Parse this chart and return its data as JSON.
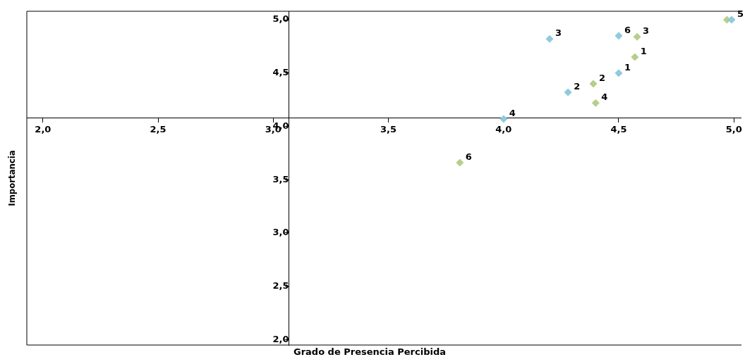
{
  "chart_data": {
    "type": "scatter",
    "xlabel": "Grado de Presencia Percibida",
    "ylabel": "Importancia",
    "xlim": [
      1.93,
      5.03
    ],
    "ylim": [
      1.95,
      5.08
    ],
    "xticks": [
      {
        "value": 2,
        "label": "2,0"
      },
      {
        "value": 2.5,
        "label": "2,5"
      },
      {
        "value": 3,
        "label": "3,0"
      },
      {
        "value": 3.5,
        "label": "3,5"
      },
      {
        "value": 4,
        "label": "4,0"
      },
      {
        "value": 4.5,
        "label": "4,5"
      },
      {
        "value": 5,
        "label": "5,0"
      }
    ],
    "yticks": [
      {
        "value": 2,
        "label": "2,0"
      },
      {
        "value": 2.5,
        "label": "2,5"
      },
      {
        "value": 3,
        "label": "3,0"
      },
      {
        "value": 3.5,
        "label": "3,5"
      },
      {
        "value": 4,
        "label": "4,0"
      },
      {
        "value": 4.5,
        "label": "4,5"
      },
      {
        "value": 5,
        "label": "5,0"
      }
    ],
    "marker": "diamond",
    "grid": false,
    "series": [
      {
        "color": "#8ecae0",
        "x": [
          4.5,
          4.28,
          4.2,
          4.0,
          4.99,
          4.5
        ],
        "values": [
          4.5,
          4.32,
          4.82,
          4.07,
          5.0,
          4.85
        ]
      },
      {
        "color": "#b5cf8a",
        "x": [
          4.57,
          4.39,
          4.58,
          4.4,
          4.97,
          3.81
        ],
        "values": [
          4.65,
          4.4,
          4.84,
          4.22,
          5.0,
          3.66
        ]
      }
    ],
    "annotations": [
      {
        "text": "1",
        "x": 4.5,
        "y": 4.5
      },
      {
        "text": "2",
        "x": 4.28,
        "y": 4.32
      },
      {
        "text": "3",
        "x": 4.2,
        "y": 4.82
      },
      {
        "text": "4",
        "x": 4.0,
        "y": 4.07
      },
      {
        "text": "5",
        "x": 4.99,
        "y": 5.0
      },
      {
        "text": "6",
        "x": 4.5,
        "y": 4.85
      },
      {
        "text": "1",
        "x": 4.57,
        "y": 4.65
      },
      {
        "text": "2",
        "x": 4.39,
        "y": 4.4
      },
      {
        "text": "3",
        "x": 4.58,
        "y": 4.84
      },
      {
        "text": "4",
        "x": 4.4,
        "y": 4.22
      },
      {
        "text": "6",
        "x": 3.81,
        "y": 3.66
      }
    ]
  }
}
